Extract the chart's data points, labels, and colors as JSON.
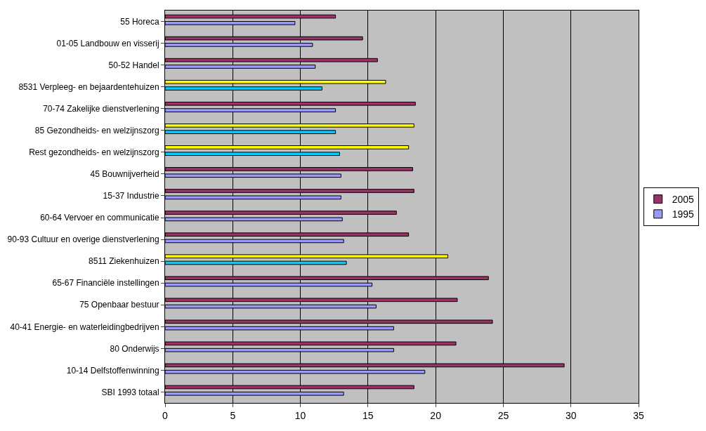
{
  "chart_data": {
    "type": "bar",
    "orientation": "horizontal",
    "categories": [
      "55 Horeca",
      "01-05 Landbouw en visserij",
      "50-52 Handel",
      "8531 Verpleeg- en bejaardentehuizen",
      "70-74 Zakelijke dienstverlening",
      "85 Gezondheids- en welzijnszorg",
      "Rest gezondheids- en welzijnszorg",
      "45 Bouwnijverheid",
      "15-37 Industrie",
      "60-64 Vervoer en communicatie",
      "90-93 Cultuur en overige dienstverlening",
      "8511 Ziekenhuizen",
      "65-67 Financiële instellingen",
      "75 Openbaar bestuur",
      "40-41 Energie- en waterleidingbedrijven",
      "80 Onderwijs",
      "10-14 Delfstoffenwinning",
      "SBI 1993 totaal"
    ],
    "series": [
      {
        "name": "2005",
        "color": "#993366",
        "colors": [
          "#993366",
          "#993366",
          "#993366",
          "#ffff00",
          "#993366",
          "#ffff00",
          "#ffff00",
          "#993366",
          "#993366",
          "#993366",
          "#993366",
          "#ffff00",
          "#993366",
          "#993366",
          "#993366",
          "#993366",
          "#993366",
          "#993366"
        ],
        "values": [
          12.6,
          14.6,
          15.7,
          16.3,
          18.5,
          18.4,
          18.0,
          18.3,
          18.4,
          17.1,
          18.0,
          20.9,
          23.9,
          21.6,
          24.2,
          21.5,
          29.5,
          18.4
        ]
      },
      {
        "name": "1995",
        "color": "#9999ff",
        "colors": [
          "#9999ff",
          "#9999ff",
          "#9999ff",
          "#00ccff",
          "#9999ff",
          "#00ccff",
          "#00ccff",
          "#9999ff",
          "#9999ff",
          "#9999ff",
          "#9999ff",
          "#00ccff",
          "#9999ff",
          "#9999ff",
          "#9999ff",
          "#9999ff",
          "#9999ff",
          "#9999ff"
        ],
        "values": [
          9.6,
          10.9,
          11.1,
          11.6,
          12.6,
          12.6,
          12.9,
          13.0,
          13.0,
          13.1,
          13.2,
          13.4,
          15.3,
          15.6,
          16.9,
          16.9,
          19.2,
          13.2
        ]
      }
    ],
    "xlim": [
      0,
      35
    ],
    "xticks": [
      0,
      5,
      10,
      15,
      20,
      25,
      30,
      35
    ],
    "grid": "x",
    "legend": "right"
  }
}
